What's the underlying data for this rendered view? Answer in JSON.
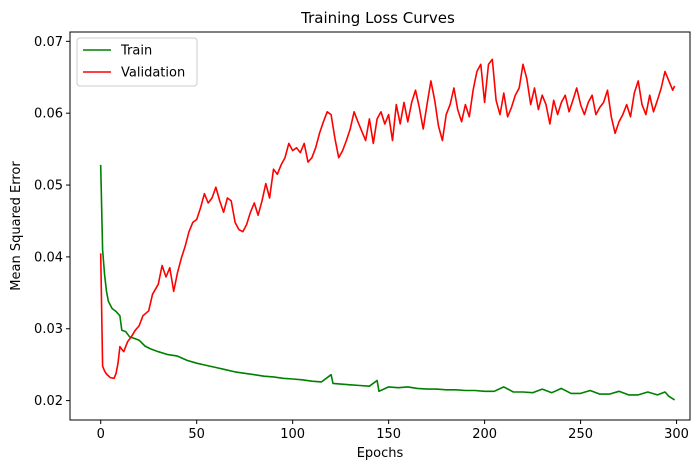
{
  "chart_data": {
    "type": "line",
    "title": "Training Loss Curves",
    "xlabel": "Epochs",
    "ylabel": "Mean Squared Error",
    "xlim": [
      -16,
      307
    ],
    "ylim": [
      0.0173,
      0.0713
    ],
    "xticks": [
      0,
      50,
      100,
      150,
      200,
      250,
      300
    ],
    "yticks": [
      0.02,
      0.03,
      0.04,
      0.05,
      0.06,
      0.07
    ],
    "ytick_labels": [
      "0.02",
      "0.03",
      "0.04",
      "0.05",
      "0.06",
      "0.07"
    ],
    "grid": false,
    "legend_position": "top-left",
    "series": [
      {
        "name": "Train",
        "color": "#008000",
        "points": [
          [
            0,
            0.0528
          ],
          [
            1,
            0.041
          ],
          [
            2,
            0.0375
          ],
          [
            3,
            0.0352
          ],
          [
            4,
            0.0338
          ],
          [
            5,
            0.0333
          ],
          [
            6,
            0.0328
          ],
          [
            8,
            0.0324
          ],
          [
            10,
            0.0318
          ],
          [
            11,
            0.0298
          ],
          [
            13,
            0.0296
          ],
          [
            15,
            0.0289
          ],
          [
            18,
            0.0286
          ],
          [
            20,
            0.0284
          ],
          [
            23,
            0.0276
          ],
          [
            26,
            0.0272
          ],
          [
            30,
            0.0268
          ],
          [
            35,
            0.0264
          ],
          [
            40,
            0.0262
          ],
          [
            45,
            0.0256
          ],
          [
            50,
            0.0252
          ],
          [
            55,
            0.0249
          ],
          [
            60,
            0.0246
          ],
          [
            65,
            0.0243
          ],
          [
            70,
            0.024
          ],
          [
            75,
            0.0238
          ],
          [
            80,
            0.0236
          ],
          [
            85,
            0.0234
          ],
          [
            90,
            0.0233
          ],
          [
            95,
            0.0231
          ],
          [
            100,
            0.023
          ],
          [
            105,
            0.0229
          ],
          [
            110,
            0.0227
          ],
          [
            115,
            0.0226
          ],
          [
            120,
            0.0236
          ],
          [
            121,
            0.0224
          ],
          [
            125,
            0.0223
          ],
          [
            130,
            0.0222
          ],
          [
            135,
            0.0221
          ],
          [
            140,
            0.022
          ],
          [
            144,
            0.0228
          ],
          [
            145,
            0.0213
          ],
          [
            150,
            0.0219
          ],
          [
            155,
            0.0218
          ],
          [
            160,
            0.0219
          ],
          [
            165,
            0.0217
          ],
          [
            170,
            0.0216
          ],
          [
            175,
            0.0216
          ],
          [
            180,
            0.0215
          ],
          [
            185,
            0.0215
          ],
          [
            190,
            0.0214
          ],
          [
            195,
            0.0214
          ],
          [
            200,
            0.0213
          ],
          [
            205,
            0.0213
          ],
          [
            210,
            0.0219
          ],
          [
            215,
            0.0212
          ],
          [
            220,
            0.0212
          ],
          [
            225,
            0.0211
          ],
          [
            230,
            0.0216
          ],
          [
            235,
            0.0211
          ],
          [
            240,
            0.0217
          ],
          [
            245,
            0.021
          ],
          [
            250,
            0.021
          ],
          [
            255,
            0.0214
          ],
          [
            260,
            0.0209
          ],
          [
            265,
            0.0209
          ],
          [
            270,
            0.0213
          ],
          [
            275,
            0.0208
          ],
          [
            280,
            0.0208
          ],
          [
            285,
            0.0212
          ],
          [
            290,
            0.0208
          ],
          [
            294,
            0.0212
          ],
          [
            296,
            0.0206
          ],
          [
            299,
            0.0201
          ]
        ]
      },
      {
        "name": "Validation",
        "color": "#ff0000",
        "points": [
          [
            0,
            0.0405
          ],
          [
            1,
            0.0248
          ],
          [
            2,
            0.0241
          ],
          [
            3,
            0.0237
          ],
          [
            5,
            0.0232
          ],
          [
            7,
            0.0231
          ],
          [
            8,
            0.0238
          ],
          [
            9,
            0.0252
          ],
          [
            10,
            0.0275
          ],
          [
            12,
            0.0268
          ],
          [
            14,
            0.0282
          ],
          [
            16,
            0.0289
          ],
          [
            18,
            0.0298
          ],
          [
            20,
            0.0304
          ],
          [
            22,
            0.0318
          ],
          [
            25,
            0.0325
          ],
          [
            27,
            0.0348
          ],
          [
            30,
            0.0362
          ],
          [
            32,
            0.0388
          ],
          [
            34,
            0.0372
          ],
          [
            36,
            0.0385
          ],
          [
            38,
            0.0352
          ],
          [
            40,
            0.0378
          ],
          [
            42,
            0.0398
          ],
          [
            44,
            0.0415
          ],
          [
            46,
            0.0435
          ],
          [
            48,
            0.0448
          ],
          [
            50,
            0.0452
          ],
          [
            52,
            0.0468
          ],
          [
            54,
            0.0488
          ],
          [
            56,
            0.0475
          ],
          [
            58,
            0.0482
          ],
          [
            60,
            0.0497
          ],
          [
            62,
            0.0478
          ],
          [
            64,
            0.0462
          ],
          [
            66,
            0.0482
          ],
          [
            68,
            0.0478
          ],
          [
            70,
            0.0448
          ],
          [
            72,
            0.0438
          ],
          [
            74,
            0.0435
          ],
          [
            76,
            0.0445
          ],
          [
            78,
            0.0462
          ],
          [
            80,
            0.0475
          ],
          [
            82,
            0.0458
          ],
          [
            84,
            0.0478
          ],
          [
            86,
            0.0502
          ],
          [
            88,
            0.0482
          ],
          [
            90,
            0.0522
          ],
          [
            92,
            0.0515
          ],
          [
            94,
            0.0528
          ],
          [
            96,
            0.0538
          ],
          [
            98,
            0.0558
          ],
          [
            100,
            0.0548
          ],
          [
            102,
            0.0552
          ],
          [
            104,
            0.0545
          ],
          [
            106,
            0.0558
          ],
          [
            108,
            0.0532
          ],
          [
            110,
            0.0538
          ],
          [
            112,
            0.0552
          ],
          [
            114,
            0.0572
          ],
          [
            116,
            0.0588
          ],
          [
            118,
            0.0602
          ],
          [
            120,
            0.0598
          ],
          [
            122,
            0.0565
          ],
          [
            124,
            0.0538
          ],
          [
            126,
            0.0548
          ],
          [
            128,
            0.0562
          ],
          [
            130,
            0.0578
          ],
          [
            132,
            0.0602
          ],
          [
            134,
            0.0588
          ],
          [
            136,
            0.0575
          ],
          [
            138,
            0.0562
          ],
          [
            140,
            0.0592
          ],
          [
            142,
            0.0558
          ],
          [
            144,
            0.0592
          ],
          [
            146,
            0.0602
          ],
          [
            148,
            0.0585
          ],
          [
            150,
            0.0598
          ],
          [
            152,
            0.0562
          ],
          [
            154,
            0.0612
          ],
          [
            156,
            0.0585
          ],
          [
            158,
            0.0615
          ],
          [
            160,
            0.0588
          ],
          [
            162,
            0.0615
          ],
          [
            164,
            0.0632
          ],
          [
            166,
            0.0608
          ],
          [
            168,
            0.0578
          ],
          [
            170,
            0.0612
          ],
          [
            172,
            0.0645
          ],
          [
            174,
            0.0618
          ],
          [
            176,
            0.0582
          ],
          [
            178,
            0.0562
          ],
          [
            180,
            0.0598
          ],
          [
            182,
            0.0612
          ],
          [
            184,
            0.0635
          ],
          [
            186,
            0.0605
          ],
          [
            188,
            0.0588
          ],
          [
            190,
            0.0612
          ],
          [
            192,
            0.0595
          ],
          [
            194,
            0.0632
          ],
          [
            196,
            0.0658
          ],
          [
            198,
            0.0668
          ],
          [
            200,
            0.0615
          ],
          [
            202,
            0.0668
          ],
          [
            204,
            0.0675
          ],
          [
            206,
            0.0618
          ],
          [
            208,
            0.0598
          ],
          [
            210,
            0.0628
          ],
          [
            212,
            0.0595
          ],
          [
            214,
            0.0608
          ],
          [
            216,
            0.0625
          ],
          [
            218,
            0.0635
          ],
          [
            220,
            0.0668
          ],
          [
            222,
            0.0648
          ],
          [
            224,
            0.0612
          ],
          [
            226,
            0.0635
          ],
          [
            228,
            0.0605
          ],
          [
            230,
            0.0625
          ],
          [
            232,
            0.0612
          ],
          [
            234,
            0.0585
          ],
          [
            236,
            0.0618
          ],
          [
            238,
            0.0598
          ],
          [
            240,
            0.0615
          ],
          [
            242,
            0.0625
          ],
          [
            244,
            0.0602
          ],
          [
            246,
            0.0618
          ],
          [
            248,
            0.0635
          ],
          [
            250,
            0.0612
          ],
          [
            252,
            0.0598
          ],
          [
            254,
            0.0615
          ],
          [
            256,
            0.0625
          ],
          [
            258,
            0.0598
          ],
          [
            260,
            0.0608
          ],
          [
            262,
            0.0615
          ],
          [
            264,
            0.0632
          ],
          [
            266,
            0.0595
          ],
          [
            268,
            0.0572
          ],
          [
            270,
            0.0588
          ],
          [
            272,
            0.0598
          ],
          [
            274,
            0.0612
          ],
          [
            276,
            0.0595
          ],
          [
            278,
            0.0628
          ],
          [
            280,
            0.0645
          ],
          [
            282,
            0.0612
          ],
          [
            284,
            0.0598
          ],
          [
            286,
            0.0625
          ],
          [
            288,
            0.0602
          ],
          [
            290,
            0.0618
          ],
          [
            292,
            0.0635
          ],
          [
            294,
            0.0658
          ],
          [
            296,
            0.0645
          ],
          [
            298,
            0.0632
          ],
          [
            299,
            0.0638
          ]
        ]
      }
    ]
  }
}
